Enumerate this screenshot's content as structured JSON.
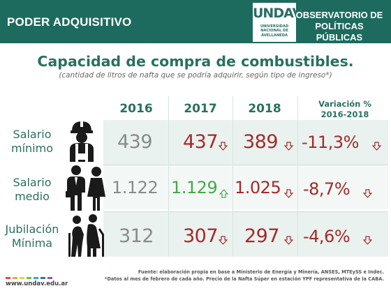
{
  "header": {
    "section": "PODER ADQUISITIVO",
    "logo_mark": "UNDAV",
    "logo_sub": [
      "UNIVERSIDAD",
      "NACIONAL DE",
      "AVELLANEDA"
    ],
    "observatorio": [
      "OBSERVATORIO DE",
      "POLÍTICAS PÚBLICAS"
    ],
    "bar_color": "#1d6b5e"
  },
  "title": "Capacidad de compra de combustibles.",
  "subtitle": "(cantidad de litros de nafta que se podría adquirir, según tipo de ingreso*)",
  "columns": {
    "y2016": "2016",
    "y2017": "2017",
    "y2018": "2018",
    "variation": [
      "Variación %",
      "2016-2018"
    ]
  },
  "rows": [
    {
      "label": [
        "Salario",
        "mínimo"
      ],
      "icon": "worker-icon",
      "v2016": "439",
      "v2017": "437",
      "v2017_trend": "down",
      "v2018": "389",
      "v2018_trend": "down",
      "variation": "-11,3%",
      "variation_trend": "down"
    },
    {
      "label": [
        "Salario",
        "medio"
      ],
      "icon": "couple-icon",
      "v2016": "1.122",
      "v2017": "1.129",
      "v2017_trend": "up",
      "v2018": "1.025",
      "v2018_trend": "down",
      "variation": "-8,7%",
      "variation_trend": "down"
    },
    {
      "label": [
        "Jubilación",
        "Mínima"
      ],
      "icon": "elderly-couple-icon",
      "v2016": "312",
      "v2017": "307",
      "v2017_trend": "down",
      "v2018": "297",
      "v2018_trend": "down",
      "variation": "-4,6%",
      "variation_trend": "down"
    }
  ],
  "footer": {
    "url": "www.undav.edu.ar",
    "source": [
      "Fuente: elaboración propia en base a Ministerio de Energía y Minería, ANSES, MTEySS e Indec.",
      "*Datos al mes de febrero de cada año. Precio de la Nafta Súper en estación YPF representativa de la CABA."
    ]
  },
  "colors": {
    "teal": "#2a7060",
    "down": "#a52a2a",
    "up": "#46a84a",
    "neutral": "#8a8a8a"
  }
}
